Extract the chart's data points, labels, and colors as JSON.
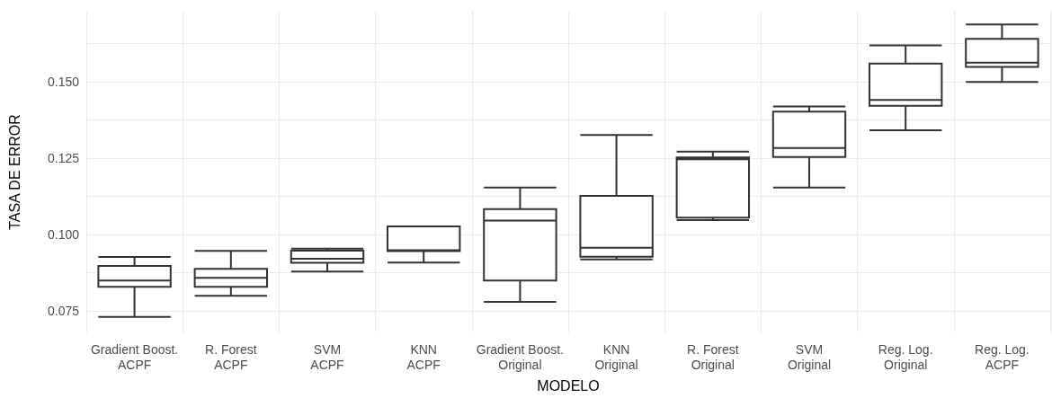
{
  "chart_data": {
    "type": "box",
    "xlabel": "MODELO",
    "ylabel": "TASA DE ERROR",
    "color": "#333333",
    "grid": true,
    "categories": [
      "Gradient Boost.\nACPF",
      "R. Forest\nACPF",
      "SVM\nACPF",
      "KNN\nACPF",
      "Gradient Boost.\nOriginal",
      "KNN\nOriginal",
      "R. Forest\nOriginal",
      "SVM\nOriginal",
      "Reg. Log.\nOriginal",
      "Reg. Log.\nACPF"
    ],
    "boxes": [
      {
        "low": 0.0731,
        "q1": 0.0829,
        "median": 0.085,
        "q3": 0.0898,
        "high": 0.0927
      },
      {
        "low": 0.08,
        "q1": 0.0829,
        "median": 0.0859,
        "q3": 0.0888,
        "high": 0.0947
      },
      {
        "low": 0.0879,
        "q1": 0.0908,
        "median": 0.0921,
        "q3": 0.0948,
        "high": 0.0954
      },
      {
        "low": 0.0909,
        "q1": 0.0946,
        "median": 0.0949,
        "q3": 0.1027,
        "high": 0.1027
      },
      {
        "low": 0.078,
        "q1": 0.085,
        "median": 0.1046,
        "q3": 0.1084,
        "high": 0.1154
      },
      {
        "low": 0.0919,
        "q1": 0.0928,
        "median": 0.0957,
        "q3": 0.1127,
        "high": 0.1326
      },
      {
        "low": 0.1048,
        "q1": 0.1056,
        "median": 0.1247,
        "q3": 0.1253,
        "high": 0.1272
      },
      {
        "low": 0.1154,
        "q1": 0.1254,
        "median": 0.1284,
        "q3": 0.1403,
        "high": 0.142
      },
      {
        "low": 0.1342,
        "q1": 0.1422,
        "median": 0.1441,
        "q3": 0.156,
        "high": 0.162
      },
      {
        "low": 0.15,
        "q1": 0.1549,
        "median": 0.1563,
        "q3": 0.1641,
        "high": 0.1688
      }
    ],
    "ylim": [
      0.068,
      0.173
    ],
    "yticks": [
      {
        "value": 0.075,
        "label": "0.075"
      },
      {
        "value": 0.0875,
        "label": null
      },
      {
        "value": 0.1,
        "label": "0.100"
      },
      {
        "value": 0.1125,
        "label": null
      },
      {
        "value": 0.125,
        "label": "0.125"
      },
      {
        "value": 0.1375,
        "label": null
      },
      {
        "value": 0.15,
        "label": "0.150"
      },
      {
        "value": 0.1625,
        "label": null
      }
    ]
  }
}
